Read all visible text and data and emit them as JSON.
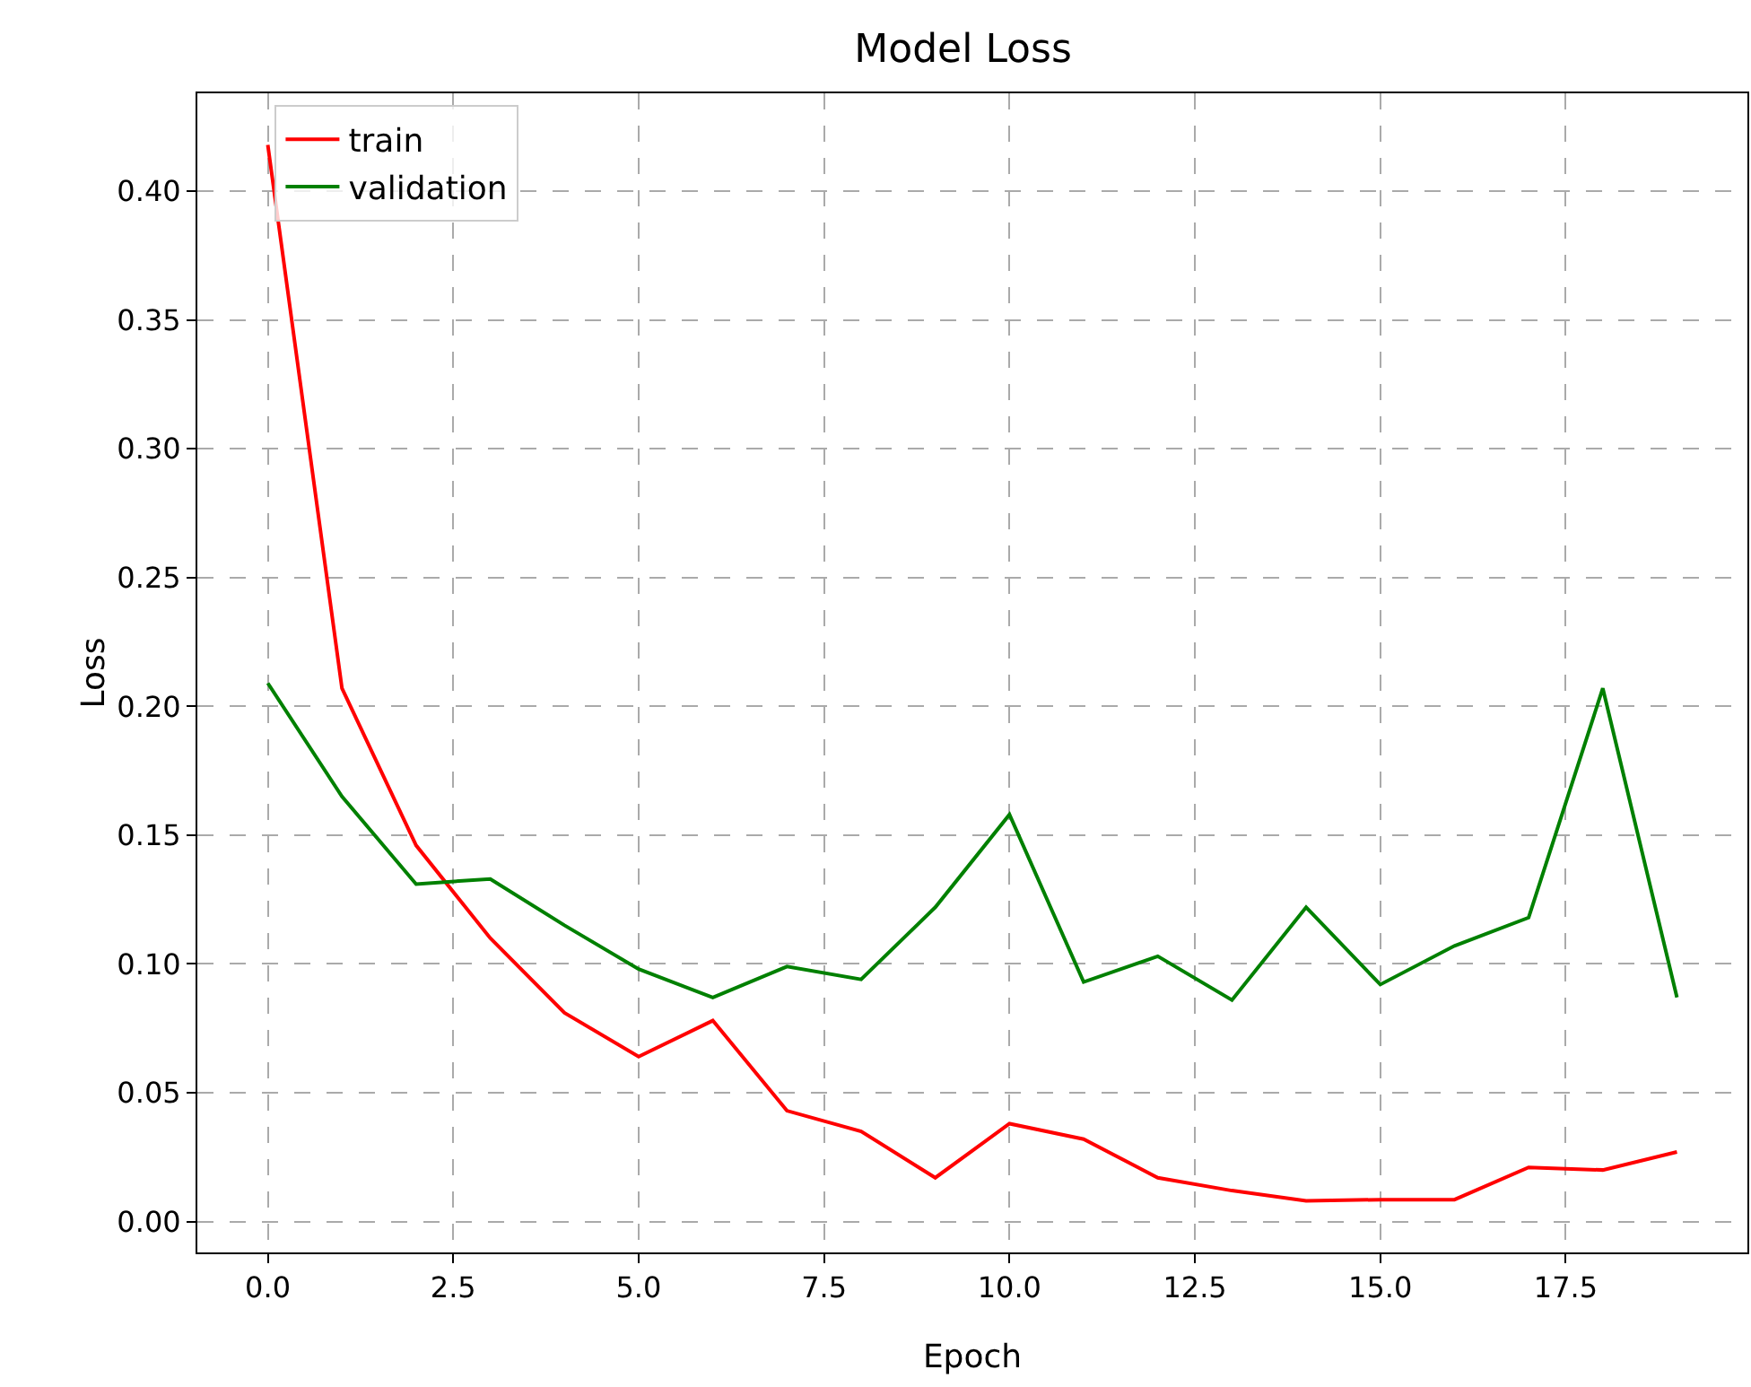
{
  "chart_data": {
    "type": "line",
    "title": "Model Loss",
    "xlabel": "Epoch",
    "ylabel": "Loss",
    "x": [
      0,
      1,
      2,
      3,
      4,
      5,
      6,
      7,
      8,
      9,
      10,
      11,
      12,
      13,
      14,
      15,
      16,
      17,
      18,
      19
    ],
    "series": [
      {
        "name": "train",
        "color": "#ff0000",
        "values": [
          0.418,
          0.207,
          0.146,
          0.11,
          0.081,
          0.064,
          0.078,
          0.043,
          0.035,
          0.017,
          0.038,
          0.032,
          0.017,
          0.012,
          0.008,
          0.0085,
          0.0085,
          0.021,
          0.02,
          0.027
        ]
      },
      {
        "name": "validation",
        "color": "#008000",
        "values": [
          0.209,
          0.165,
          0.131,
          0.133,
          0.115,
          0.098,
          0.087,
          0.099,
          0.094,
          0.122,
          0.158,
          0.093,
          0.103,
          0.086,
          0.122,
          0.092,
          0.107,
          0.118,
          0.207,
          0.087
        ]
      }
    ],
    "xlim": [
      -0.95,
      19.95
    ],
    "ylim": [
      -0.012,
      0.438
    ],
    "xticks": [
      {
        "value": 0,
        "label": "0.0"
      },
      {
        "value": 2.5,
        "label": "2.5"
      },
      {
        "value": 5,
        "label": "5.0"
      },
      {
        "value": 7.5,
        "label": "7.5"
      },
      {
        "value": 10,
        "label": "10.0"
      },
      {
        "value": 12.5,
        "label": "12.5"
      },
      {
        "value": 15,
        "label": "15.0"
      },
      {
        "value": 17.5,
        "label": "17.5"
      }
    ],
    "yticks": [
      {
        "value": 0,
        "label": "0.00"
      },
      {
        "value": 0.05,
        "label": "0.05"
      },
      {
        "value": 0.1,
        "label": "0.10"
      },
      {
        "value": 0.15,
        "label": "0.15"
      },
      {
        "value": 0.2,
        "label": "0.20"
      },
      {
        "value": 0.25,
        "label": "0.25"
      },
      {
        "value": 0.3,
        "label": "0.30"
      },
      {
        "value": 0.35,
        "label": "0.35"
      },
      {
        "value": 0.4,
        "label": "0.40"
      }
    ],
    "grid": true,
    "legend": "top left",
    "marker": "none",
    "line_style": "solid"
  }
}
